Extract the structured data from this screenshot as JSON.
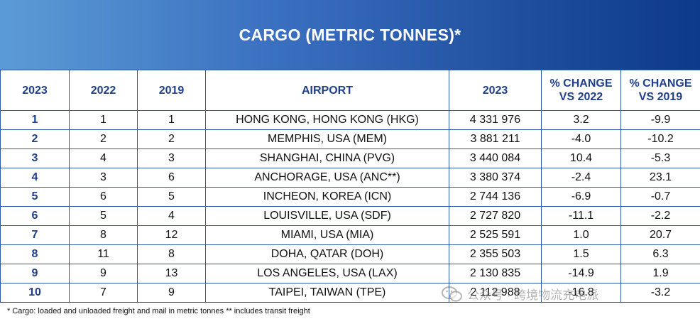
{
  "title": "CARGO (METRIC TONNES)*",
  "headers": [
    "2023",
    "2022",
    "2019",
    "AIRPORT",
    "2023",
    "% CHANGE VS 2022",
    "% CHANGE VS 2019"
  ],
  "rows": [
    {
      "rank_2023": "1",
      "rank_2022": "1",
      "rank_2019": "1",
      "airport": "HONG KONG, HONG KONG (HKG)",
      "cargo_2023": "4 331 976",
      "chg_2022": "3.2",
      "chg_2019": "-9.9"
    },
    {
      "rank_2023": "2",
      "rank_2022": "2",
      "rank_2019": "2",
      "airport": "MEMPHIS,  USA (MEM)",
      "cargo_2023": "3 881 211",
      "chg_2022": "-4.0",
      "chg_2019": "-10.2"
    },
    {
      "rank_2023": "3",
      "rank_2022": "4",
      "rank_2019": "3",
      "airport": "SHANGHAI, CHINA (PVG)",
      "cargo_2023": "3 440 084",
      "chg_2022": "10.4",
      "chg_2019": "-5.3"
    },
    {
      "rank_2023": "4",
      "rank_2022": "3",
      "rank_2019": "6",
      "airport": "ANCHORAGE, USA (ANC**)",
      "cargo_2023": "3 380 374",
      "chg_2022": "-2.4",
      "chg_2019": "23.1"
    },
    {
      "rank_2023": "5",
      "rank_2022": "6",
      "rank_2019": "5",
      "airport": "INCHEON, KOREA (ICN)",
      "cargo_2023": "2 744 136",
      "chg_2022": "-6.9",
      "chg_2019": "-0.7"
    },
    {
      "rank_2023": "6",
      "rank_2022": "5",
      "rank_2019": "4",
      "airport": "LOUISVILLE,  USA (SDF)",
      "cargo_2023": "2 727 820",
      "chg_2022": "-11.1",
      "chg_2019": "-2.2"
    },
    {
      "rank_2023": "7",
      "rank_2022": "8",
      "rank_2019": "12",
      "airport": "MIAMI,  USA (MIA)",
      "cargo_2023": "2 525 591",
      "chg_2022": "1.0",
      "chg_2019": "20.7"
    },
    {
      "rank_2023": "8",
      "rank_2022": "11",
      "rank_2019": "8",
      "airport": "DOHA, QATAR (DOH)",
      "cargo_2023": "2 355 503",
      "chg_2022": "1.5",
      "chg_2019": "6.3"
    },
    {
      "rank_2023": "9",
      "rank_2022": "9",
      "rank_2019": "13",
      "airport": "LOS ANGELES, USA (LAX)",
      "cargo_2023": "2 130 835",
      "chg_2022": "-14.9",
      "chg_2019": "1.9"
    },
    {
      "rank_2023": "10",
      "rank_2022": "7",
      "rank_2019": "9",
      "airport": "TAIPEI, TAIWAN (TPE)",
      "cargo_2023": "2 112 988",
      "chg_2022": "-16.8",
      "chg_2019": "-3.2"
    }
  ],
  "footnote": "* Cargo: loaded and unloaded freight and mail in metric tonnes ** includes transit freight",
  "watermark": "公众号 · 跨境物流充电派",
  "colors": {
    "header_text": "#1f3f8a",
    "border": "#2e5aa8",
    "banner_start": "#5b9bd5",
    "banner_end": "#0d3a8a"
  }
}
